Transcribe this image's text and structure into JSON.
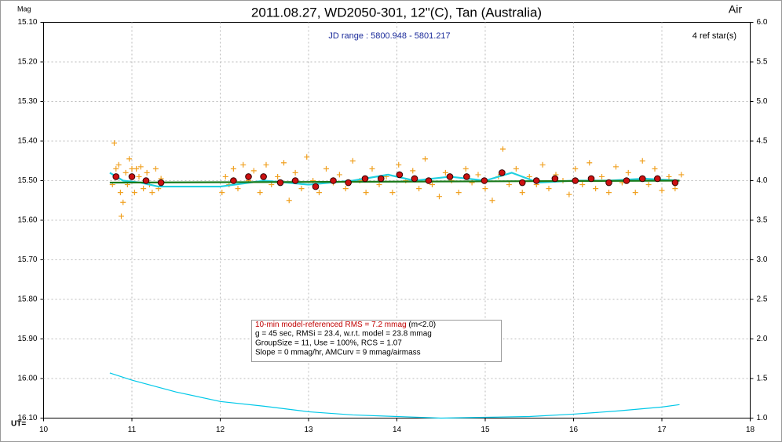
{
  "chart_data": {
    "type": "scatter",
    "title": "2011.08.27, WD2050-301, 12\"(C), Tan (Australia)",
    "xlabel": "UT=",
    "ylabel": "Mag",
    "y2label": "Air",
    "annotations": [
      "JD range : 5800.948 - 5801.217",
      "4 ref star(s)"
    ],
    "stats_box": [
      "10-min model-referenced RMS = 7.2 mmag",
      "(m<2.0)",
      "g = 45 sec, RMSi = 23.4, w.r.t. model = 23.8 mmag",
      "GroupSize = 11, Use = 100%, RCS = 1.07",
      "Slope = 0 mmag/hr, AMCurv = 9 mmag/airmass"
    ],
    "xlim": [
      10,
      18
    ],
    "xticks": [
      10,
      11,
      12,
      13,
      14,
      15,
      16,
      17,
      18
    ],
    "ylim": [
      15.1,
      16.1
    ],
    "y_inverted": true,
    "yticks": [
      {
        "value": 15.1,
        "label": "15.10"
      },
      {
        "value": 15.2,
        "label": "15.20"
      },
      {
        "value": 15.3,
        "label": "15.30"
      },
      {
        "value": 15.4,
        "label": "15.40"
      },
      {
        "value": 15.5,
        "label": "15.50"
      },
      {
        "value": 15.6,
        "label": "15.60"
      },
      {
        "value": 15.7,
        "label": "15.70"
      },
      {
        "value": 15.8,
        "label": "15.80"
      },
      {
        "value": 15.9,
        "label": "15.90"
      },
      {
        "value": 16.0,
        "label": "16.00"
      },
      {
        "value": 16.1,
        "label": "16.10"
      }
    ],
    "y2lim": [
      1.0,
      6.0
    ],
    "y2ticks": [
      {
        "value": 1.0,
        "label": "1.0"
      },
      {
        "value": 1.5,
        "label": "1.5"
      },
      {
        "value": 2.0,
        "label": "2.0"
      },
      {
        "value": 2.5,
        "label": "2.5"
      },
      {
        "value": 3.0,
        "label": "3.0"
      },
      {
        "value": 3.5,
        "label": "3.5"
      },
      {
        "value": 4.0,
        "label": "4.0"
      },
      {
        "value": 4.5,
        "label": "4.5"
      },
      {
        "value": 5.0,
        "label": "5.0"
      },
      {
        "value": 5.5,
        "label": "5.5"
      },
      {
        "value": 6.0,
        "label": "6.0"
      }
    ],
    "grid": true,
    "series": [
      {
        "marker": "plus",
        "color": "#f0a020",
        "x": [
          10.78,
          10.8,
          10.82,
          10.85,
          10.87,
          10.88,
          10.9,
          10.93,
          10.95,
          10.97,
          11.0,
          11.03,
          11.05,
          11.08,
          11.1,
          11.13,
          11.17,
          11.2,
          11.23,
          11.27,
          11.3,
          11.33,
          12.02,
          12.06,
          12.1,
          12.15,
          12.2,
          12.26,
          12.32,
          12.38,
          12.45,
          12.52,
          12.58,
          12.65,
          12.72,
          12.78,
          12.85,
          12.92,
          12.98,
          13.05,
          13.12,
          13.2,
          13.28,
          13.35,
          13.42,
          13.5,
          13.58,
          13.65,
          13.72,
          13.8,
          13.88,
          13.95,
          14.02,
          14.1,
          14.18,
          14.25,
          14.32,
          14.4,
          14.48,
          14.55,
          14.62,
          14.7,
          14.78,
          14.85,
          14.92,
          15.0,
          15.08,
          15.15,
          15.2,
          15.27,
          15.35,
          15.42,
          15.5,
          15.58,
          15.65,
          15.72,
          15.8,
          15.88,
          15.95,
          16.02,
          16.1,
          16.18,
          16.25,
          16.32,
          16.4,
          16.48,
          16.55,
          16.62,
          16.7,
          16.78,
          16.85,
          16.92,
          17.0,
          17.08,
          17.15,
          17.22
        ],
        "values": [
          15.51,
          15.405,
          15.47,
          15.46,
          15.53,
          15.59,
          15.555,
          15.48,
          15.51,
          15.445,
          15.47,
          15.53,
          15.47,
          15.49,
          15.465,
          15.52,
          15.48,
          15.51,
          15.53,
          15.47,
          15.52,
          15.495,
          15.53,
          15.49,
          15.51,
          15.47,
          15.52,
          15.46,
          15.5,
          15.475,
          15.53,
          15.46,
          15.51,
          15.49,
          15.455,
          15.55,
          15.48,
          15.52,
          15.44,
          15.5,
          15.53,
          15.47,
          15.505,
          15.485,
          15.52,
          15.45,
          15.5,
          15.53,
          15.47,
          15.51,
          15.49,
          15.53,
          15.46,
          15.5,
          15.475,
          15.52,
          15.445,
          15.51,
          15.54,
          15.48,
          15.5,
          15.53,
          15.47,
          15.505,
          15.485,
          15.52,
          15.55,
          15.49,
          15.42,
          15.51,
          15.47,
          15.53,
          15.49,
          15.51,
          15.46,
          15.52,
          15.485,
          15.5,
          15.535,
          15.47,
          15.51,
          15.455,
          15.52,
          15.49,
          15.53,
          15.465,
          15.505,
          15.48,
          15.53,
          15.45,
          15.51,
          15.47,
          15.525,
          15.49,
          15.52,
          15.485
        ]
      },
      {
        "marker": "line",
        "color": "#20d0e0",
        "x": [
          10.75,
          10.9,
          11.1,
          11.3,
          12.0,
          12.5,
          13.0,
          13.5,
          13.9,
          14.2,
          14.6,
          15.0,
          15.3,
          15.6,
          16.0,
          16.4,
          16.8,
          17.2
        ],
        "values": [
          15.48,
          15.5,
          15.505,
          15.515,
          15.515,
          15.5,
          15.51,
          15.5,
          15.485,
          15.5,
          15.49,
          15.5,
          15.48,
          15.505,
          15.5,
          15.5,
          15.495,
          15.5
        ]
      },
      {
        "marker": "line",
        "color": "#1a7a1a",
        "x": [
          10.75,
          17.2
        ],
        "values": [
          15.505,
          15.5
        ]
      },
      {
        "marker": "dot",
        "color": "#cc1010",
        "x": [
          10.82,
          11.0,
          11.16,
          11.33,
          12.15,
          12.32,
          12.49,
          12.68,
          12.85,
          13.08,
          13.28,
          13.45,
          13.64,
          13.82,
          14.03,
          14.2,
          14.36,
          14.6,
          14.79,
          14.99,
          15.19,
          15.42,
          15.58,
          15.79,
          16.02,
          16.2,
          16.4,
          16.6,
          16.78,
          16.95,
          17.15
        ],
        "values": [
          15.49,
          15.49,
          15.5,
          15.505,
          15.5,
          15.49,
          15.49,
          15.505,
          15.5,
          15.515,
          15.5,
          15.505,
          15.495,
          15.495,
          15.485,
          15.495,
          15.5,
          15.49,
          15.49,
          15.5,
          15.48,
          15.505,
          15.5,
          15.495,
          15.5,
          15.495,
          15.505,
          15.5,
          15.495,
          15.495,
          15.505
        ]
      },
      {
        "marker": "line",
        "color": "#00c8e8",
        "axis": "y2",
        "x": [
          10.75,
          11.0,
          11.5,
          12.0,
          12.5,
          13.0,
          13.5,
          14.0,
          14.5,
          15.0,
          15.5,
          16.0,
          16.5,
          17.0,
          17.2
        ],
        "values": [
          1.57,
          1.48,
          1.33,
          1.21,
          1.15,
          1.08,
          1.04,
          1.02,
          1.0,
          1.01,
          1.02,
          1.05,
          1.09,
          1.14,
          1.17
        ]
      }
    ]
  }
}
